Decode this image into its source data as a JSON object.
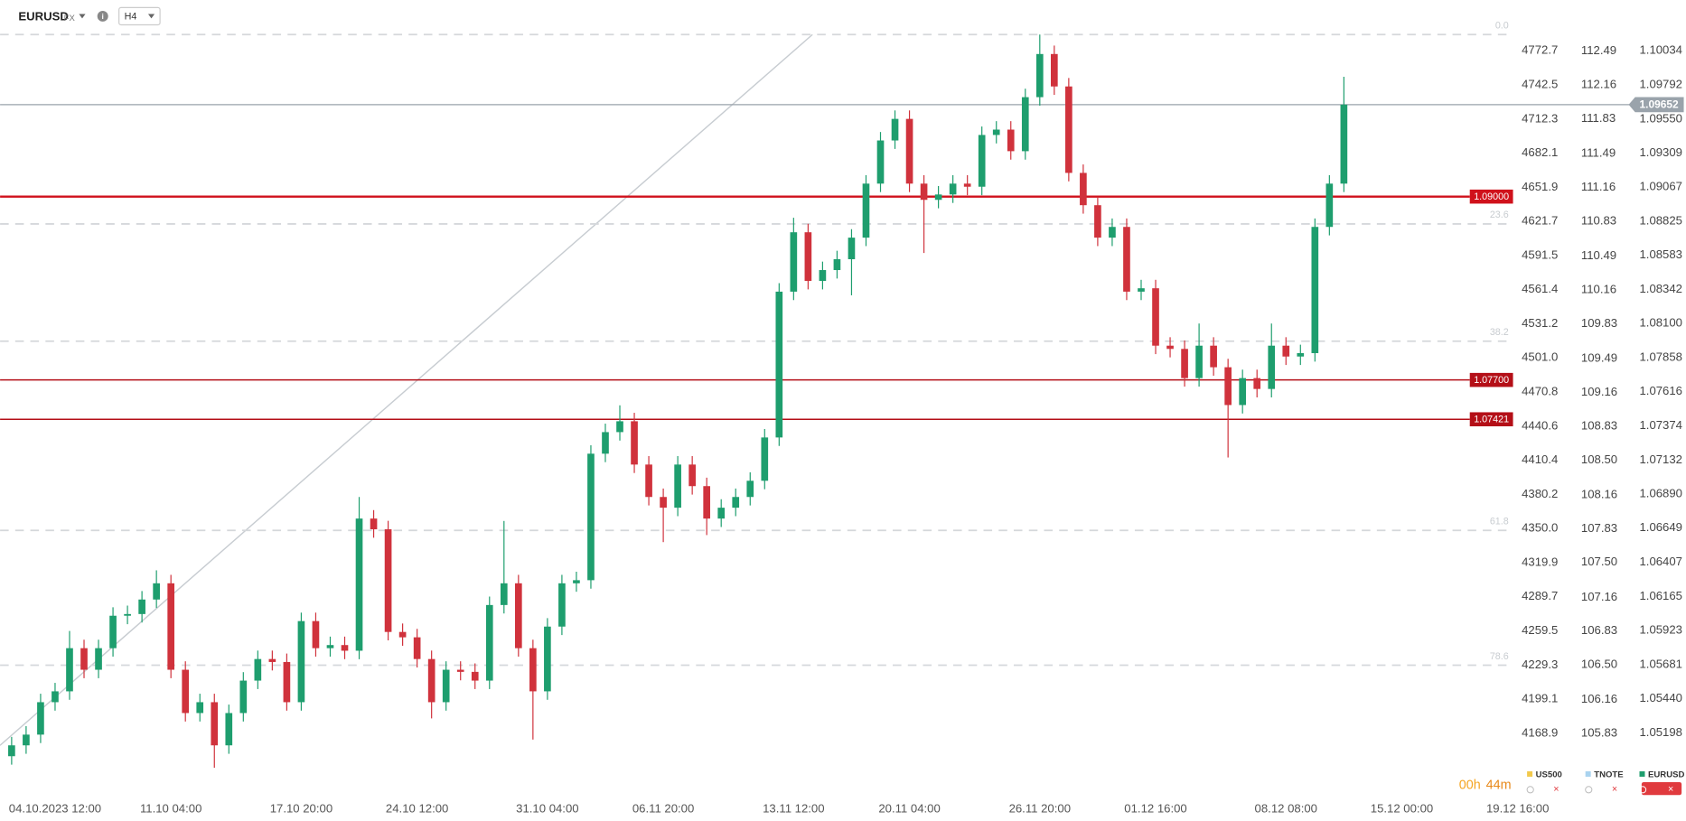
{
  "header": {
    "symbol": "EURUSD",
    "market": "FX",
    "timeframe": "H4"
  },
  "countdown": {
    "hours": "00h",
    "minutes": "44m"
  },
  "chart_data": {
    "type": "candlestick",
    "categories": [
      null,
      null,
      null,
      "04.10.2023 12:00",
      null,
      null,
      null,
      null,
      null,
      null,
      null,
      "11.10 04:00",
      null,
      null,
      null,
      null,
      null,
      null,
      null,
      null,
      "17.10 20:00",
      null,
      null,
      null,
      null,
      null,
      null,
      null,
      "24.10 12:00",
      null,
      null,
      null,
      null,
      null,
      null,
      null,
      null,
      "31.10 04:00",
      null,
      null,
      null,
      null,
      null,
      null,
      null,
      "06.11 20:00",
      null,
      null,
      null,
      null,
      null,
      null,
      null,
      null,
      "13.11 12:00",
      null,
      null,
      null,
      null,
      null,
      null,
      null,
      "20.11 04:00",
      null,
      null,
      null,
      null,
      null,
      null,
      null,
      null,
      "26.11 20:00",
      null,
      null,
      null,
      null,
      null,
      null,
      null,
      "01.12 16:00",
      null,
      null,
      null,
      null,
      null,
      null,
      null,
      null,
      "08.12 08:00",
      null,
      null,
      null,
      null,
      null,
      null,
      null,
      "15.12 00:00",
      null,
      null,
      null,
      null,
      null,
      null,
      null,
      "19.12 16:00"
    ],
    "series": [
      {
        "name": "US500",
        "color": "#f2c94c",
        "axis": "y2"
      },
      {
        "name": "TNOTE",
        "color": "#a9d3ef",
        "axis": "y3"
      },
      {
        "name": "EURUSD",
        "color": "#1e9e6e",
        "down_color": "#d0323c",
        "open": [
          1.05032,
          1.05109,
          1.05185,
          1.05415,
          1.05492,
          1.05798,
          1.05645,
          1.05798,
          1.06028,
          1.0604,
          1.06143,
          1.06258,
          1.05645,
          1.05338,
          1.05415,
          1.05109,
          1.05338,
          1.05568,
          1.05721,
          1.057,
          1.05415,
          1.0599,
          1.05798,
          1.0582,
          1.0578,
          1.06717,
          1.06641,
          1.05913,
          1.05875,
          1.05721,
          1.05415,
          1.05645,
          1.0563,
          1.05568,
          1.06104,
          1.06258,
          1.05798,
          1.05492,
          1.05951,
          1.06258,
          1.0628,
          1.07177,
          1.0733,
          1.07407,
          1.071,
          1.0687,
          1.06794,
          1.071,
          1.06947,
          1.06717,
          1.06794,
          1.0687,
          1.06985,
          1.07292,
          1.08326,
          1.08747,
          1.08402,
          1.08479,
          1.08556,
          1.08709,
          1.09092,
          1.09398,
          1.09551,
          1.09092,
          1.08977,
          1.09015,
          1.09092,
          1.0907,
          1.09437,
          1.09475,
          1.09322,
          1.09705,
          1.10011,
          1.09781,
          1.09168,
          1.08939,
          1.08709,
          1.08785,
          1.08326,
          1.0835,
          1.07943,
          1.0792,
          1.07713,
          1.07943,
          1.0779,
          1.07522,
          1.07713,
          1.07636,
          1.07943,
          1.07866,
          1.0789,
          1.08785,
          1.09092,
          null,
          null,
          null,
          null,
          null,
          null,
          null,
          null,
          null,
          null,
          null,
          null
        ],
        "high": [
          1.05169,
          1.05245,
          1.05475,
          1.05552,
          1.0592,
          1.05858,
          1.05858,
          1.06088,
          1.061,
          1.06203,
          1.0635,
          1.06318,
          1.05705,
          1.05475,
          1.05475,
          1.05398,
          1.05628,
          1.05781,
          1.05781,
          1.0576,
          1.0605,
          1.0605,
          1.0588,
          1.0588,
          1.0687,
          1.06777,
          1.06701,
          1.05973,
          1.05935,
          1.05781,
          1.05705,
          1.05705,
          1.0569,
          1.06164,
          1.067,
          1.06318,
          1.05858,
          1.06011,
          1.06318,
          1.0634,
          1.07237,
          1.0739,
          1.0752,
          1.07467,
          1.0716,
          1.0693,
          1.0716,
          1.0716,
          1.07007,
          1.06854,
          1.0693,
          1.07045,
          1.07352,
          1.08386,
          1.0885,
          1.08807,
          1.08539,
          1.08616,
          1.08769,
          1.09152,
          1.09458,
          1.09611,
          1.09611,
          1.09152,
          1.09075,
          1.09152,
          1.09152,
          1.09497,
          1.09535,
          1.09535,
          1.09765,
          1.10149,
          1.10071,
          1.09841,
          1.09228,
          1.08999,
          1.08845,
          1.08845,
          1.0841,
          1.0841,
          1.08003,
          1.0798,
          1.081,
          1.08003,
          1.0785,
          1.07773,
          1.07773,
          1.081,
          1.08003,
          1.0795,
          1.08845,
          1.09152,
          1.0985,
          null,
          null,
          null,
          null,
          null,
          null,
          null,
          null,
          null,
          null,
          null,
          null
        ],
        "low": [
          1.04972,
          1.05049,
          1.05125,
          1.05355,
          1.05432,
          1.05585,
          1.05585,
          1.05738,
          1.05968,
          1.0598,
          1.06083,
          1.05585,
          1.05278,
          1.05278,
          1.0495,
          1.05049,
          1.05278,
          1.05508,
          1.0564,
          1.05355,
          1.05355,
          1.05738,
          1.05738,
          1.0572,
          1.0572,
          1.06581,
          1.05853,
          1.05815,
          1.05661,
          1.053,
          1.05355,
          1.0557,
          1.05508,
          1.05508,
          1.06044,
          1.05738,
          1.0515,
          1.05432,
          1.05891,
          1.06198,
          1.0622,
          1.07117,
          1.0727,
          1.0704,
          1.0681,
          1.0655,
          1.06734,
          1.06887,
          1.066,
          1.06657,
          1.06734,
          1.0681,
          1.06925,
          1.07232,
          1.08266,
          1.08342,
          1.08342,
          1.08419,
          1.083,
          1.08649,
          1.09032,
          1.09338,
          1.09032,
          1.086,
          1.08917,
          1.08955,
          1.0901,
          1.0901,
          1.09377,
          1.09262,
          1.09262,
          1.09645,
          1.09721,
          1.09108,
          1.08879,
          1.08649,
          1.08649,
          1.08266,
          1.08266,
          1.07883,
          1.0786,
          1.07653,
          1.07653,
          1.0773,
          1.0715,
          1.07462,
          1.07576,
          1.07576,
          1.07806,
          1.07806,
          1.0783,
          1.08725,
          1.09032,
          null,
          null,
          null,
          null,
          null,
          null,
          null,
          null,
          null,
          null,
          null,
          null
        ],
        "close": [
          1.05109,
          1.05185,
          1.05415,
          1.05492,
          1.05798,
          1.05645,
          1.05798,
          1.06028,
          1.0604,
          1.06143,
          1.06258,
          1.05645,
          1.05338,
          1.05415,
          1.05109,
          1.05338,
          1.05568,
          1.05721,
          1.057,
          1.05415,
          1.0599,
          1.05798,
          1.0582,
          1.0578,
          1.06717,
          1.06641,
          1.05913,
          1.05875,
          1.05721,
          1.05415,
          1.05645,
          1.0563,
          1.05568,
          1.06104,
          1.06258,
          1.05798,
          1.05492,
          1.05951,
          1.06258,
          1.0628,
          1.07177,
          1.0733,
          1.07407,
          1.071,
          1.0687,
          1.06794,
          1.071,
          1.06947,
          1.06717,
          1.06794,
          1.0687,
          1.06985,
          1.07292,
          1.08326,
          1.08747,
          1.08402,
          1.08479,
          1.08556,
          1.08709,
          1.09092,
          1.09398,
          1.09551,
          1.09092,
          1.08977,
          1.09015,
          1.09092,
          1.0907,
          1.09437,
          1.09475,
          1.09322,
          1.09705,
          1.10011,
          1.09781,
          1.09168,
          1.08939,
          1.08709,
          1.08785,
          1.08326,
          1.0835,
          1.07943,
          1.0792,
          1.07713,
          1.07943,
          1.0779,
          1.07522,
          1.07713,
          1.07636,
          1.07943,
          1.07866,
          1.0789,
          1.08785,
          1.09092,
          1.09652,
          null,
          null,
          null,
          null,
          null,
          null,
          null,
          null,
          null,
          null,
          null,
          null
        ]
      }
    ],
    "ylim": [
      1.04764,
      1.10394
    ],
    "yticks": [
      1.10034,
      1.09792,
      {
        "value": 1.0955,
        "label": "1.09550"
      },
      1.09309,
      1.09067,
      1.08825,
      1.08583,
      1.08342,
      {
        "value": 1.081,
        "label": "1.08100"
      },
      1.07858,
      1.07616,
      1.07374,
      1.07132,
      {
        "value": 1.0689,
        "label": "1.06890"
      },
      1.06649,
      1.06407,
      1.06165,
      1.05923,
      1.05681,
      {
        "value": 1.0544,
        "label": "1.05440"
      },
      1.05198
    ],
    "y2lim": [
      4115.2,
      4817.6
    ],
    "y2ticks": [
      4772.7,
      4742.5,
      4712.3,
      4682.1,
      4651.9,
      4621.7,
      4591.5,
      4561.4,
      4531.2,
      {
        "value": 4501,
        "label": "4501.0"
      },
      4470.8,
      4440.6,
      4410.4,
      4380.2,
      {
        "value": 4350,
        "label": "4350.0"
      },
      4319.9,
      4289.7,
      4259.5,
      4229.3,
      4199.1,
      4168.9
    ],
    "y3lim": [
      105.24,
      112.99
    ],
    "y3ticks": [
      112.49,
      112.16,
      111.83,
      111.49,
      111.16,
      110.83,
      110.49,
      110.16,
      109.83,
      109.49,
      109.16,
      108.83,
      {
        "value": 108.5,
        "label": "108.50"
      },
      108.16,
      107.83,
      {
        "value": 107.5,
        "label": "107.50"
      },
      107.16,
      106.83,
      {
        "value": 106.5,
        "label": "106.50"
      },
      106.16,
      105.83
    ],
    "grid": false,
    "last_price": {
      "value": 1.09652,
      "label": "1.09652",
      "color": "#9aa3ab"
    },
    "levels": [
      {
        "value": 1.09,
        "label": "1.09000",
        "color": "#d0111b"
      },
      {
        "value": 1.077,
        "label": "1.07700",
        "color": "#b40f17"
      },
      {
        "value": 1.07421,
        "label": "1.07421",
        "color": "#b40f17"
      }
    ],
    "fib_levels": [
      {
        "value": 1.10149,
        "label": "0.0"
      },
      {
        "value": 1.08806,
        "label": "23.6"
      },
      {
        "value": 1.07975,
        "label": "38.2"
      },
      {
        "value": 1.06633,
        "label": "61.8"
      },
      {
        "value": 1.05677,
        "label": "78.6"
      }
    ],
    "trend_line": {
      "x": [
        -0.8,
        55.3
      ],
      "y": [
        1.05109,
        1.10149
      ],
      "color": "#c7ccd1"
    }
  }
}
